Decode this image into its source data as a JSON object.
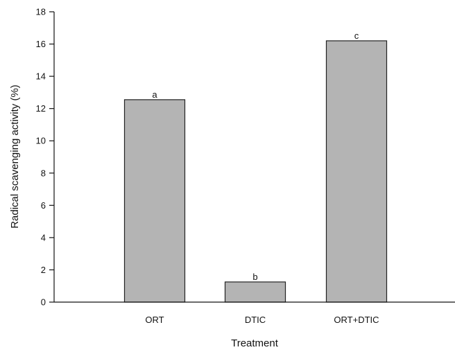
{
  "chart_data": {
    "type": "bar",
    "title": "",
    "xlabel": "Treatment",
    "ylabel": "Radical scavenging activity (%)",
    "categories": [
      "ORT",
      "DTIC",
      "ORT+DTIC"
    ],
    "values": [
      12.55,
      1.25,
      16.2
    ],
    "data_labels": [
      "a",
      "b",
      "c"
    ],
    "ylim": [
      0,
      18
    ],
    "yticks": [
      0,
      2,
      4,
      6,
      8,
      10,
      12,
      14,
      16,
      18
    ],
    "grid": false,
    "legend": "none",
    "bar_color": "#b4b4b4"
  }
}
